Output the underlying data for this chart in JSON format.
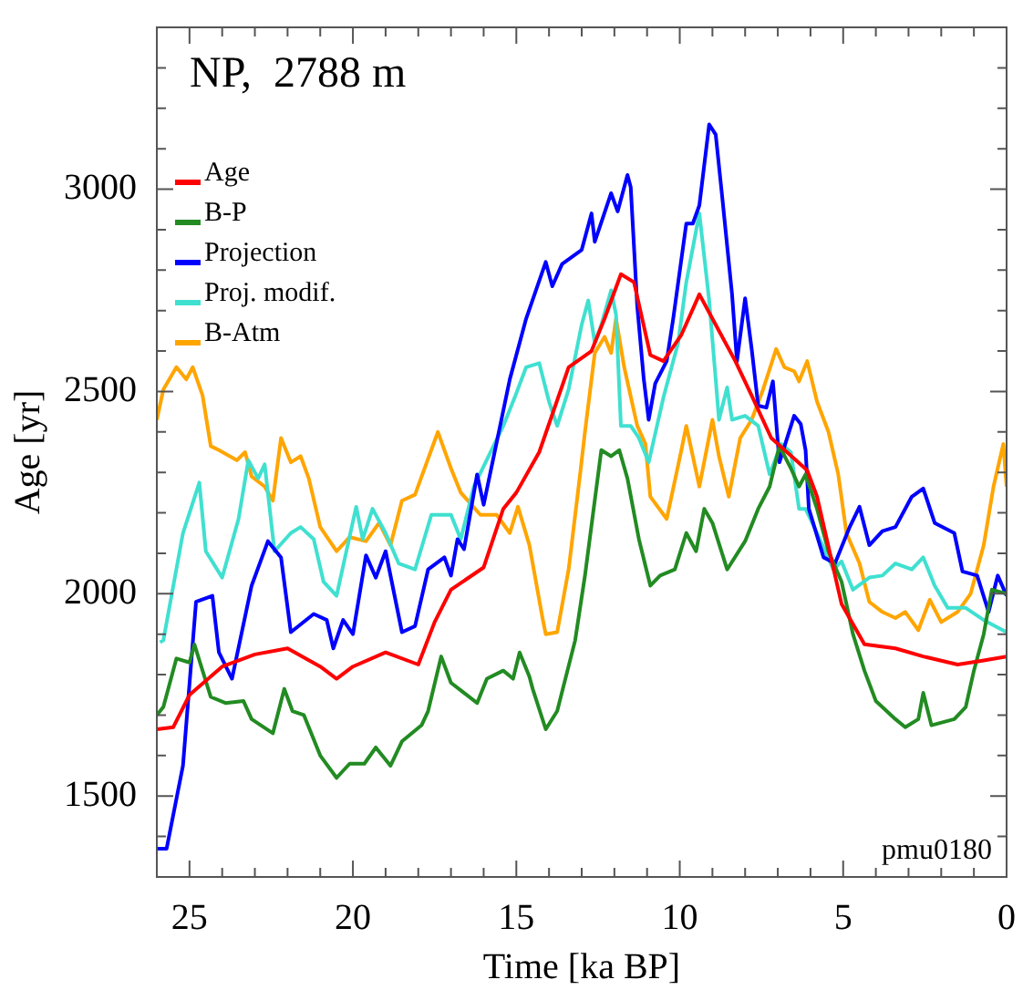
{
  "chart_data": {
    "type": "line",
    "title": "NP,  2788 m",
    "xlabel": "Time [ka BP]",
    "ylabel": "Age [yr]",
    "annotations": [
      "pmu0180"
    ],
    "xlim": [
      26,
      0
    ],
    "xticks": [
      {
        "value": 26,
        "label": null
      },
      25,
      {
        "value": 24,
        "label": null
      },
      {
        "value": 23,
        "label": null
      },
      {
        "value": 22,
        "label": null
      },
      {
        "value": 21,
        "label": null
      },
      20,
      {
        "value": 19,
        "label": null
      },
      {
        "value": 18,
        "label": null
      },
      {
        "value": 17,
        "label": null
      },
      {
        "value": 16,
        "label": null
      },
      15,
      {
        "value": 14,
        "label": null
      },
      {
        "value": 13,
        "label": null
      },
      {
        "value": 12,
        "label": null
      },
      {
        "value": 11,
        "label": null
      },
      10,
      {
        "value": 9,
        "label": null
      },
      {
        "value": 8,
        "label": null
      },
      {
        "value": 7,
        "label": null
      },
      {
        "value": 6,
        "label": null
      },
      5,
      {
        "value": 4,
        "label": null
      },
      {
        "value": 3,
        "label": null
      },
      {
        "value": 2,
        "label": null
      },
      {
        "value": 1,
        "label": null
      },
      0
    ],
    "ylim": [
      1300,
      3400
    ],
    "yticks": [
      {
        "value": 1400,
        "label": null
      },
      1500,
      {
        "value": 1600,
        "label": null
      },
      {
        "value": 1700,
        "label": null
      },
      {
        "value": 1800,
        "label": null
      },
      {
        "value": 1900,
        "label": null
      },
      2000,
      {
        "value": 2100,
        "label": null
      },
      {
        "value": 2200,
        "label": null
      },
      {
        "value": 2300,
        "label": null
      },
      {
        "value": 2400,
        "label": null
      },
      2500,
      {
        "value": 2600,
        "label": null
      },
      {
        "value": 2700,
        "label": null
      },
      {
        "value": 2800,
        "label": null
      },
      {
        "value": 2900,
        "label": null
      },
      3000,
      {
        "value": 3100,
        "label": null
      },
      {
        "value": 3200,
        "label": null
      },
      {
        "value": 3300,
        "label": null
      }
    ],
    "grid": false,
    "legend": "top left",
    "marker": "none",
    "line_style": "solid",
    "series": [
      {
        "name": "Age",
        "color": "#ff0000",
        "x": [
          26,
          25.5,
          25,
          24,
          23,
          22,
          21,
          20.5,
          20,
          19,
          18,
          17.5,
          17,
          16,
          15.4,
          15,
          14.3,
          13.4,
          12.7,
          12.3,
          11.8,
          11.4,
          10.9,
          10.5,
          9.95,
          9.4,
          8.9,
          8.3,
          7.8,
          7.2,
          6.1,
          5.8,
          5.05,
          4.35,
          3.4,
          2.55,
          1.5,
          0.7,
          0
        ],
        "values": [
          1665,
          1670,
          1750,
          1820,
          1850,
          1865,
          1820,
          1790,
          1820,
          1855,
          1825,
          1930,
          2010,
          2065,
          2210,
          2250,
          2350,
          2560,
          2600,
          2680,
          2790,
          2770,
          2590,
          2575,
          2640,
          2740,
          2665,
          2575,
          2490,
          2385,
          2305,
          2240,
          1975,
          1875,
          1865,
          1845,
          1825,
          1835,
          1845
        ]
      },
      {
        "name": "B-P",
        "color": "#228b22",
        "x": [
          26,
          25.8,
          25.4,
          25,
          24.85,
          24.35,
          23.9,
          23.35,
          23.1,
          22.45,
          22.1,
          21.85,
          21.5,
          21,
          20.5,
          20.1,
          19.65,
          19.3,
          18.85,
          18.5,
          17.9,
          17.7,
          17.3,
          17,
          16.2,
          15.9,
          15.4,
          15.1,
          14.9,
          14.6,
          14.5,
          14.1,
          13.75,
          13.2,
          12.9,
          12.4,
          12.1,
          11.85,
          11.6,
          11.25,
          10.9,
          10.6,
          10.15,
          9.8,
          9.5,
          9.25,
          9,
          8.55,
          8,
          7.6,
          7.25,
          6.95,
          6.6,
          6.35,
          6.15,
          5.8,
          5.45,
          5.05,
          4.7,
          4.35,
          4,
          3.4,
          3.1,
          2.7,
          2.55,
          2.3,
          1.6,
          1.25,
          1,
          0.7,
          0.45,
          0
        ],
        "values": [
          1700,
          1720,
          1840,
          1830,
          1875,
          1745,
          1730,
          1735,
          1690,
          1655,
          1765,
          1710,
          1700,
          1600,
          1545,
          1580,
          1580,
          1620,
          1575,
          1635,
          1675,
          1710,
          1845,
          1780,
          1730,
          1790,
          1810,
          1790,
          1855,
          1795,
          1765,
          1665,
          1710,
          1885,
          2045,
          2355,
          2340,
          2355,
          2285,
          2135,
          2020,
          2045,
          2060,
          2150,
          2105,
          2210,
          2175,
          2060,
          2130,
          2210,
          2265,
          2365,
          2310,
          2265,
          2295,
          2210,
          2105,
          2030,
          1900,
          1810,
          1735,
          1690,
          1670,
          1690,
          1755,
          1675,
          1690,
          1720,
          1810,
          1900,
          2010,
          2000
        ]
      },
      {
        "name": "Projection",
        "color": "#0000ff",
        "x": [
          26,
          25.7,
          25.2,
          24.8,
          24.3,
          24.1,
          23.7,
          23.1,
          22.6,
          22.2,
          21.9,
          21.2,
          20.8,
          20.6,
          20.3,
          20,
          19.6,
          19.3,
          19,
          18.5,
          18.1,
          17.7,
          17.2,
          17,
          16.8,
          16.6,
          16.2,
          16,
          15.2,
          14.7,
          14.1,
          13.9,
          13.6,
          13,
          12.7,
          12.6,
          12.1,
          11.9,
          11.6,
          11.5,
          11.3,
          11.1,
          10.95,
          10.75,
          10.4,
          10.2,
          9.8,
          9.6,
          9.4,
          9.1,
          8.9,
          8.7,
          8.4,
          8.25,
          8,
          7.8,
          7.6,
          7.35,
          7.15,
          6.95,
          6.5,
          6.3,
          6.15,
          6.05,
          5.6,
          5.25,
          4.8,
          4.5,
          4.2,
          3.8,
          3.4,
          2.9,
          2.55,
          2.2,
          1.6,
          1.35,
          0.9,
          0.55,
          0.27,
          0
        ],
        "values": [
          1370,
          1370,
          1575,
          1980,
          1995,
          1855,
          1790,
          2020,
          2130,
          2090,
          1905,
          1950,
          1935,
          1865,
          1935,
          1900,
          2095,
          2040,
          2105,
          1905,
          1920,
          2060,
          2090,
          2045,
          2135,
          2110,
          2295,
          2220,
          2530,
          2680,
          2820,
          2760,
          2815,
          2850,
          2940,
          2870,
          2990,
          2945,
          3035,
          3005,
          2710,
          2530,
          2430,
          2520,
          2575,
          2680,
          2915,
          2915,
          2960,
          3160,
          3135,
          2980,
          2740,
          2575,
          2730,
          2605,
          2465,
          2460,
          2525,
          2325,
          2440,
          2420,
          2355,
          2210,
          2090,
          2075,
          2165,
          2215,
          2120,
          2155,
          2165,
          2240,
          2260,
          2175,
          2150,
          2055,
          2045,
          1955,
          2045,
          1995
        ]
      },
      {
        "name": "Proj. modif.",
        "color": "#40e0d0",
        "x": [
          25.9,
          25.8,
          25.2,
          24.7,
          24.5,
          24,
          23.5,
          23.2,
          22.9,
          22.7,
          22.4,
          21.9,
          21.6,
          21.2,
          20.9,
          20.5,
          19.9,
          19.7,
          19.4,
          19,
          18.6,
          18.1,
          17.6,
          17,
          16.7,
          16.3,
          15.4,
          15.05,
          14.7,
          14.3,
          14,
          13.75,
          13.4,
          13,
          12.8,
          12.6,
          12.4,
          12.1,
          11.95,
          11.8,
          11.5,
          11.25,
          10.95,
          10.5,
          10.05,
          9.8,
          9.4,
          9.1,
          8.9,
          8.8,
          8.55,
          8.4,
          8,
          7.6,
          7.25,
          6.9,
          6.6,
          6.35,
          6.15,
          5.8,
          5.3,
          5.05,
          4.7,
          4.2,
          3.8,
          3.4,
          2.9,
          2.55,
          2.2,
          1.8,
          1.25,
          0.7,
          0
        ],
        "values": [
          1880,
          1885,
          2150,
          2275,
          2105,
          2040,
          2185,
          2330,
          2285,
          2320,
          2105,
          2150,
          2165,
          2135,
          2030,
          1995,
          2215,
          2135,
          2210,
          2150,
          2075,
          2060,
          2195,
          2195,
          2135,
          2265,
          2415,
          2485,
          2560,
          2570,
          2475,
          2415,
          2505,
          2665,
          2725,
          2620,
          2665,
          2750,
          2690,
          2415,
          2415,
          2385,
          2325,
          2485,
          2620,
          2770,
          2940,
          2725,
          2530,
          2430,
          2510,
          2430,
          2440,
          2415,
          2295,
          2370,
          2350,
          2210,
          2210,
          2150,
          2060,
          2080,
          2010,
          2040,
          2045,
          2075,
          2060,
          2090,
          2020,
          1965,
          1965,
          1935,
          1905
        ]
      },
      {
        "name": "B-Atm",
        "color": "#ffa500",
        "x": [
          26,
          25.8,
          25.4,
          25.1,
          24.9,
          24.6,
          24.35,
          24.1,
          23.55,
          23.3,
          23.1,
          22.7,
          22.45,
          22.2,
          21.9,
          21.6,
          21.35,
          21,
          20.5,
          20.1,
          19.6,
          19.2,
          18.85,
          18.5,
          18.1,
          17.4,
          17,
          16.7,
          16.1,
          15.6,
          15.2,
          14.95,
          14.6,
          14.2,
          14.1,
          13.75,
          13.4,
          13.05,
          12.9,
          12.6,
          12.3,
          12.1,
          11.95,
          11.7,
          11.3,
          11.05,
          10.9,
          10.4,
          9.95,
          9.8,
          9.4,
          9,
          8.8,
          8.5,
          8.15,
          7.8,
          7.45,
          7.05,
          6.8,
          6.5,
          6.35,
          6.1,
          5.8,
          5.45,
          5.15,
          4.9,
          4.5,
          4.2,
          3.8,
          3.4,
          3.1,
          2.7,
          2.35,
          2,
          1.5,
          1.1,
          0.7,
          0.4,
          0.1,
          0
        ],
        "values": [
          2430,
          2505,
          2560,
          2530,
          2560,
          2490,
          2365,
          2355,
          2330,
          2350,
          2290,
          2265,
          2230,
          2385,
          2325,
          2340,
          2285,
          2165,
          2105,
          2140,
          2130,
          2175,
          2120,
          2230,
          2245,
          2400,
          2310,
          2250,
          2195,
          2195,
          2150,
          2215,
          2120,
          1940,
          1900,
          1905,
          2060,
          2295,
          2400,
          2595,
          2635,
          2595,
          2680,
          2560,
          2415,
          2370,
          2240,
          2185,
          2355,
          2415,
          2265,
          2430,
          2340,
          2240,
          2385,
          2430,
          2505,
          2605,
          2560,
          2550,
          2525,
          2575,
          2475,
          2400,
          2295,
          2150,
          2075,
          1980,
          1955,
          1940,
          1955,
          1910,
          1985,
          1930,
          1955,
          2000,
          2120,
          2265,
          2370,
          2265
        ]
      }
    ]
  }
}
